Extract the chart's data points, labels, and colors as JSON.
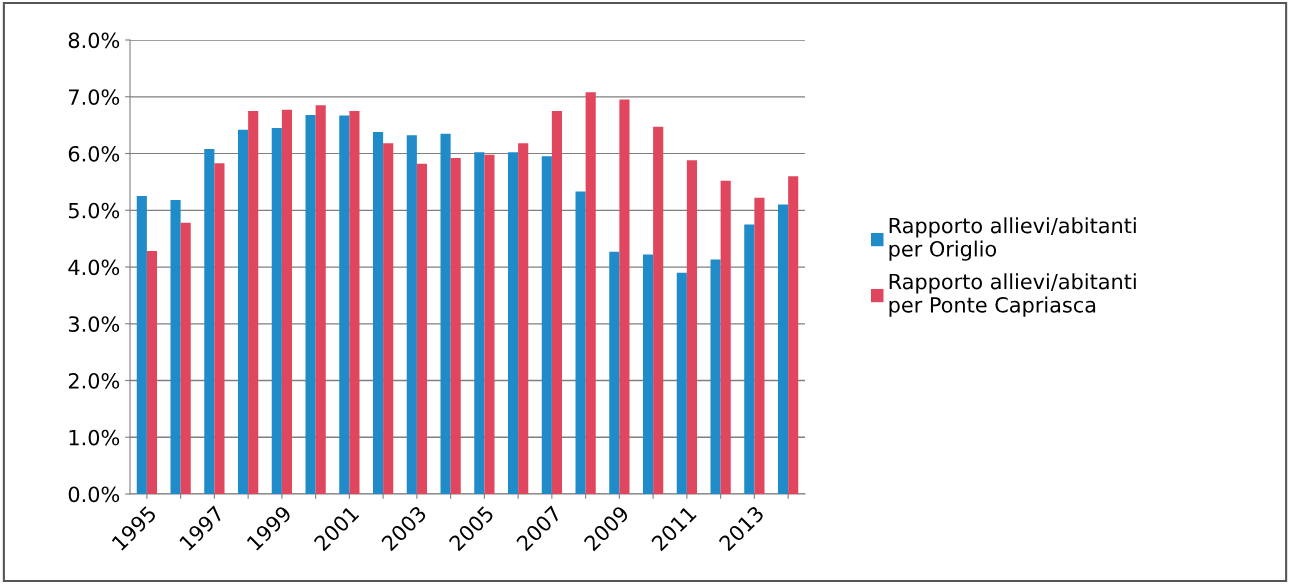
{
  "chart_data": {
    "type": "bar",
    "categories": [
      "1995",
      null,
      "1997",
      null,
      "1999",
      null,
      "2001",
      null,
      "2003",
      null,
      "2005",
      null,
      "2007",
      null,
      "2009",
      null,
      "2011",
      null,
      "2013",
      null
    ],
    "series": [
      {
        "name": "Rapporto allievi/abitanti\nper Origlio",
        "color": "#1f8bc9",
        "values": [
          5.25,
          5.18,
          6.08,
          6.42,
          6.45,
          6.68,
          6.67,
          6.38,
          6.32,
          6.35,
          6.02,
          6.02,
          5.95,
          5.33,
          4.27,
          4.22,
          3.9,
          4.13,
          4.75,
          5.1
        ]
      },
      {
        "name": "Rapporto allievi/abitanti\nper Ponte Capriasca",
        "color": "#e0465e",
        "values": [
          4.28,
          4.78,
          5.83,
          6.75,
          6.77,
          6.85,
          6.75,
          6.18,
          5.82,
          5.92,
          5.98,
          6.18,
          6.75,
          7.08,
          6.95,
          6.47,
          5.88,
          5.52,
          5.22,
          5.6
        ]
      }
    ],
    "ylim": [
      0,
      8
    ],
    "yticks": [
      {
        "value": 0,
        "label": "0.0%"
      },
      {
        "value": 1,
        "label": "1.0%"
      },
      {
        "value": 2,
        "label": "2.0%"
      },
      {
        "value": 3,
        "label": "3.0%"
      },
      {
        "value": 4,
        "label": "4.0%"
      },
      {
        "value": 5,
        "label": "5.0%"
      },
      {
        "value": 6,
        "label": "6.0%"
      },
      {
        "value": 7,
        "label": "7.0%"
      },
      {
        "value": 8,
        "label": "8.0%"
      }
    ],
    "grid": "y",
    "legend": "right"
  }
}
